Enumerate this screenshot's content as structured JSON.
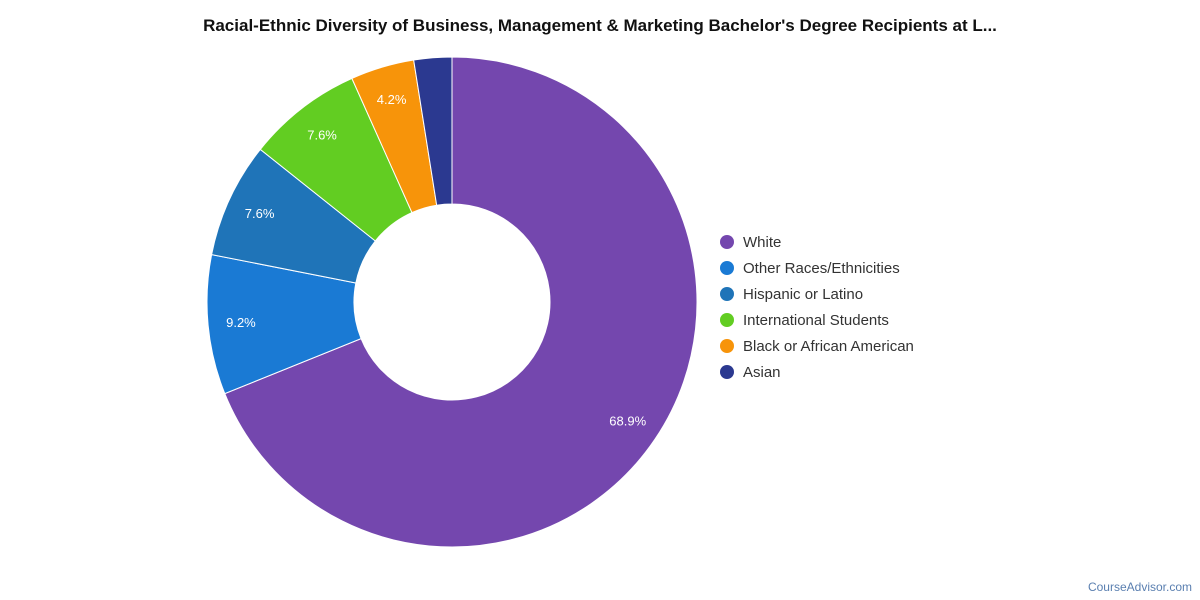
{
  "chart_data": {
    "type": "pie",
    "title": "Racial-Ethnic Diversity of Business, Management & Marketing Bachelor's Degree Recipients at L...",
    "donut": true,
    "legend_position": "right",
    "slices": [
      {
        "label": "White",
        "value": 68.9,
        "display": "68.9%",
        "color": "#7447ae"
      },
      {
        "label": "Other Races/Ethnicities",
        "value": 9.2,
        "display": "9.2%",
        "color": "#1a7ad4"
      },
      {
        "label": "Hispanic or Latino",
        "value": 7.6,
        "display": "7.6%",
        "color": "#1f74b8"
      },
      {
        "label": "International Students",
        "value": 7.6,
        "display": "7.6%",
        "color": "#62cd22"
      },
      {
        "label": "Black or African American",
        "value": 4.2,
        "display": "4.2%",
        "color": "#f7940a"
      },
      {
        "label": "Asian",
        "value": 2.5,
        "display": "",
        "color": "#2b3990"
      }
    ]
  },
  "footer": {
    "source": "CourseAdvisor.com"
  }
}
